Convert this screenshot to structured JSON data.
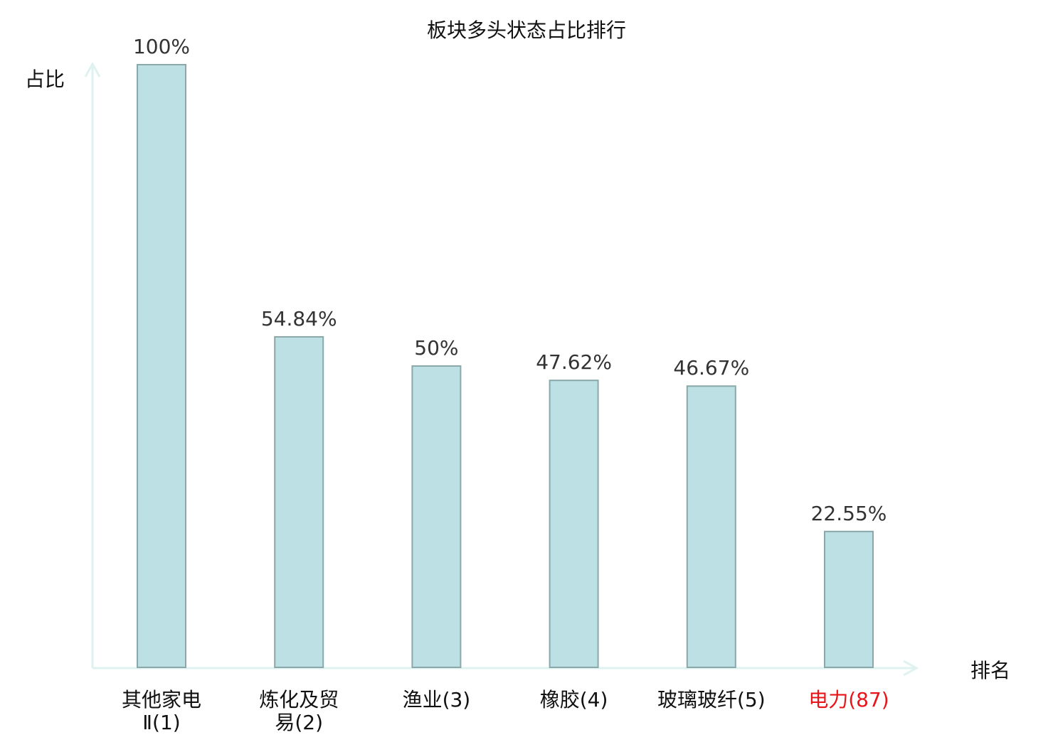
{
  "chart_data": {
    "type": "bar",
    "title": "板块多头状态占比排行",
    "xlabel": "排名",
    "ylabel": "占比",
    "categories": [
      "其他家电Ⅱ(1)",
      "炼化及贸易(2)",
      "渔业(3)",
      "橡胶(4)",
      "玻璃玻纤(5)",
      "电力(87)"
    ],
    "values": [
      100,
      54.84,
      50,
      47.62,
      46.67,
      22.55
    ],
    "value_labels": [
      "100%",
      "54.84%",
      "50%",
      "47.62%",
      "46.67%",
      "22.55%"
    ],
    "ylim": [
      0,
      100
    ],
    "grid": false,
    "highlight_index": 5,
    "colors": {
      "bar_fill": "#bce0e3",
      "bar_stroke": "#8aa8aa",
      "axis": "#dff2f0",
      "text": "#333333",
      "highlight": "#e8141a"
    }
  }
}
